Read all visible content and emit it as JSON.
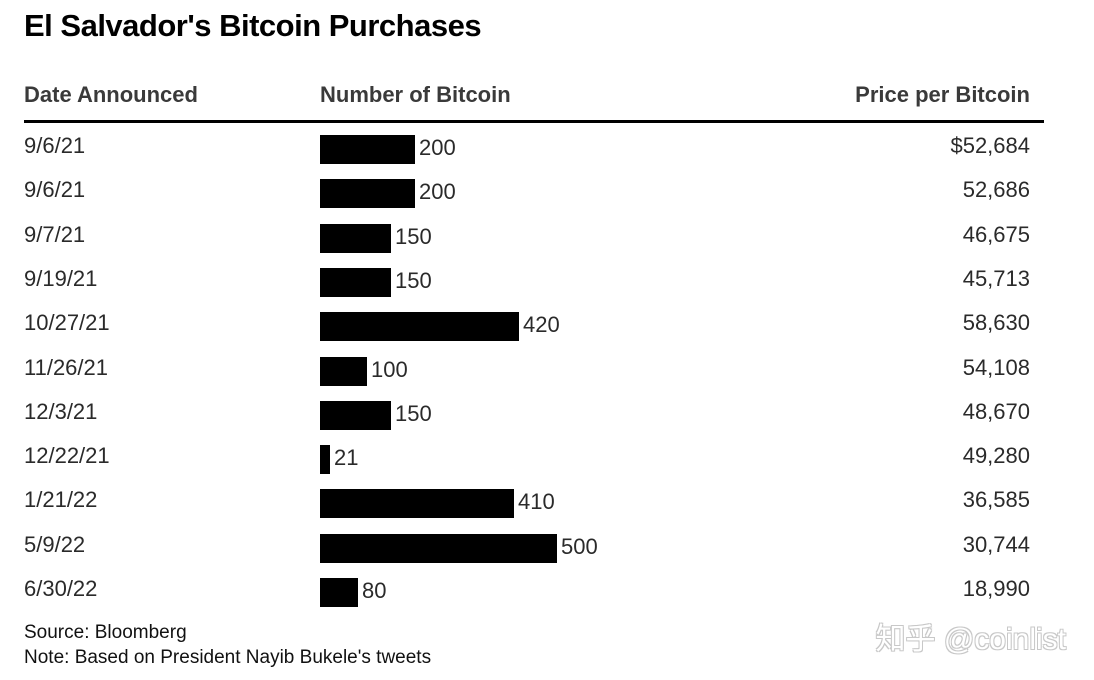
{
  "chart_data": {
    "type": "table",
    "title": "El Salvador's Bitcoin Purchases",
    "columns": [
      "Date Announced",
      "Number of Bitcoin",
      "Price per Bitcoin"
    ],
    "bar_color": "#000000",
    "rows": [
      {
        "date": "9/6/21",
        "bitcoin": 200,
        "price": "$52,684"
      },
      {
        "date": "9/6/21",
        "bitcoin": 200,
        "price": "52,686"
      },
      {
        "date": "9/7/21",
        "bitcoin": 150,
        "price": "46,675"
      },
      {
        "date": "9/19/21",
        "bitcoin": 150,
        "price": "45,713"
      },
      {
        "date": "10/27/21",
        "bitcoin": 420,
        "price": "58,630"
      },
      {
        "date": "11/26/21",
        "bitcoin": 100,
        "price": "54,108"
      },
      {
        "date": "12/3/21",
        "bitcoin": 150,
        "price": "48,670"
      },
      {
        "date": "12/22/21",
        "bitcoin": 21,
        "price": "49,280"
      },
      {
        "date": "1/21/22",
        "bitcoin": 410,
        "price": "36,585"
      },
      {
        "date": "5/9/22",
        "bitcoin": 500,
        "price": "30,744"
      },
      {
        "date": "6/30/22",
        "bitcoin": 80,
        "price": "18,990"
      }
    ],
    "source": "Source: Bloomberg",
    "note": "Note: Based on President Nayib Bukele's tweets"
  },
  "watermark": "知乎 @coinlist"
}
